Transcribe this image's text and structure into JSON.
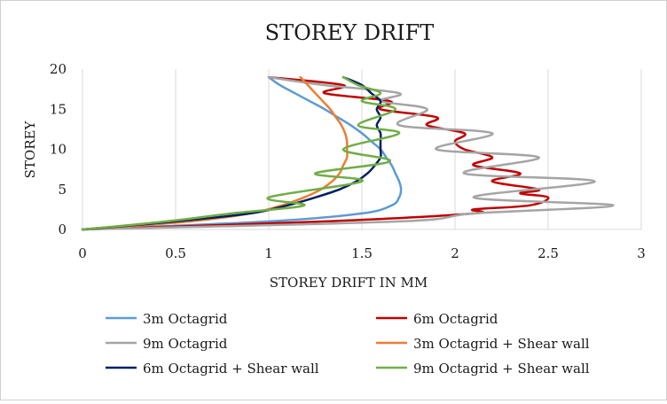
{
  "chart_data": {
    "type": "line",
    "title": "STOREY DRIFT",
    "xlabel": "STOREY DRIFT IN MM",
    "ylabel": "STOREY",
    "xlim": [
      0,
      3
    ],
    "ylim": [
      0,
      20
    ],
    "x_ticks": [
      "0",
      "0.5",
      "1",
      "1.5",
      "2",
      "2.5",
      "3"
    ],
    "y_ticks": [
      "0",
      "5",
      "10",
      "15",
      "20"
    ],
    "grid": "vertical",
    "legend_position": "bottom",
    "series": [
      {
        "name": "3m Octagrid",
        "color": "#5b9bd5",
        "points": [
          [
            0,
            0
          ],
          [
            1.0,
            1
          ],
          [
            1.5,
            2
          ],
          [
            1.66,
            3
          ],
          [
            1.7,
            4
          ],
          [
            1.71,
            5
          ],
          [
            1.7,
            6
          ],
          [
            1.68,
            7
          ],
          [
            1.66,
            8
          ],
          [
            1.63,
            9
          ],
          [
            1.6,
            10
          ],
          [
            1.55,
            11
          ],
          [
            1.5,
            12
          ],
          [
            1.44,
            13
          ],
          [
            1.37,
            14
          ],
          [
            1.3,
            15
          ],
          [
            1.22,
            16
          ],
          [
            1.14,
            17
          ],
          [
            1.06,
            18
          ],
          [
            1.0,
            19
          ]
        ]
      },
      {
        "name": "6m Octagrid",
        "color": "#c00000",
        "points": [
          [
            0,
            0
          ],
          [
            1.3,
            1
          ],
          [
            2.1,
            2
          ],
          [
            2.1,
            2.5
          ],
          [
            2.4,
            3
          ],
          [
            2.5,
            4
          ],
          [
            2.35,
            4.5
          ],
          [
            2.45,
            5
          ],
          [
            2.2,
            6
          ],
          [
            2.35,
            7
          ],
          [
            2.1,
            8
          ],
          [
            2.2,
            9
          ],
          [
            2.05,
            10
          ],
          [
            2.0,
            11
          ],
          [
            2.05,
            12
          ],
          [
            1.85,
            13
          ],
          [
            1.9,
            14
          ],
          [
            1.6,
            15
          ],
          [
            1.65,
            16
          ],
          [
            1.3,
            17
          ],
          [
            1.4,
            18
          ],
          [
            1.0,
            19
          ]
        ]
      },
      {
        "name": "9m Octagrid",
        "color": "#a5a5a5",
        "points": [
          [
            0,
            0
          ],
          [
            1.7,
            1
          ],
          [
            2.1,
            2
          ],
          [
            2.85,
            3
          ],
          [
            2.1,
            4
          ],
          [
            2.75,
            6
          ],
          [
            2.05,
            7
          ],
          [
            2.45,
            9
          ],
          [
            1.9,
            10
          ],
          [
            2.2,
            12
          ],
          [
            1.7,
            13
          ],
          [
            1.85,
            15
          ],
          [
            1.6,
            16
          ],
          [
            1.7,
            17
          ],
          [
            1.3,
            18
          ],
          [
            1.0,
            19
          ]
        ]
      },
      {
        "name": "3m Octagrid + Shear wall",
        "color": "#ed7d31",
        "points": [
          [
            0,
            0
          ],
          [
            0.58,
            1
          ],
          [
            0.9,
            2
          ],
          [
            1.07,
            3
          ],
          [
            1.19,
            4
          ],
          [
            1.28,
            5
          ],
          [
            1.34,
            6
          ],
          [
            1.38,
            7
          ],
          [
            1.4,
            8
          ],
          [
            1.42,
            9
          ],
          [
            1.42,
            10
          ],
          [
            1.42,
            11
          ],
          [
            1.41,
            12
          ],
          [
            1.39,
            13
          ],
          [
            1.36,
            14
          ],
          [
            1.33,
            15
          ],
          [
            1.29,
            16
          ],
          [
            1.25,
            17
          ],
          [
            1.21,
            18
          ],
          [
            1.17,
            19
          ]
        ]
      },
      {
        "name": "6m Octagrid + Shear wall",
        "color": "#002060",
        "points": [
          [
            0,
            0
          ],
          [
            0.5,
            1
          ],
          [
            0.9,
            2
          ],
          [
            1.1,
            3
          ],
          [
            1.25,
            4
          ],
          [
            1.38,
            5
          ],
          [
            1.47,
            6
          ],
          [
            1.53,
            7
          ],
          [
            1.57,
            8
          ],
          [
            1.6,
            9
          ],
          [
            1.6,
            10
          ],
          [
            1.6,
            11
          ],
          [
            1.6,
            12
          ],
          [
            1.58,
            13
          ],
          [
            1.6,
            14
          ],
          [
            1.58,
            15
          ],
          [
            1.6,
            16
          ],
          [
            1.55,
            17
          ],
          [
            1.5,
            18
          ],
          [
            1.4,
            19
          ]
        ]
      },
      {
        "name": "9m Octagrid + Shear wall",
        "color": "#70ad47",
        "points": [
          [
            0,
            0
          ],
          [
            0.45,
            1
          ],
          [
            0.8,
            2
          ],
          [
            1.19,
            3
          ],
          [
            1.0,
            4
          ],
          [
            1.5,
            6
          ],
          [
            1.25,
            7
          ],
          [
            1.65,
            8.5
          ],
          [
            1.4,
            10
          ],
          [
            1.7,
            12
          ],
          [
            1.48,
            13
          ],
          [
            1.68,
            15
          ],
          [
            1.5,
            16
          ],
          [
            1.6,
            17
          ],
          [
            1.48,
            18
          ],
          [
            1.4,
            19
          ]
        ]
      }
    ]
  }
}
